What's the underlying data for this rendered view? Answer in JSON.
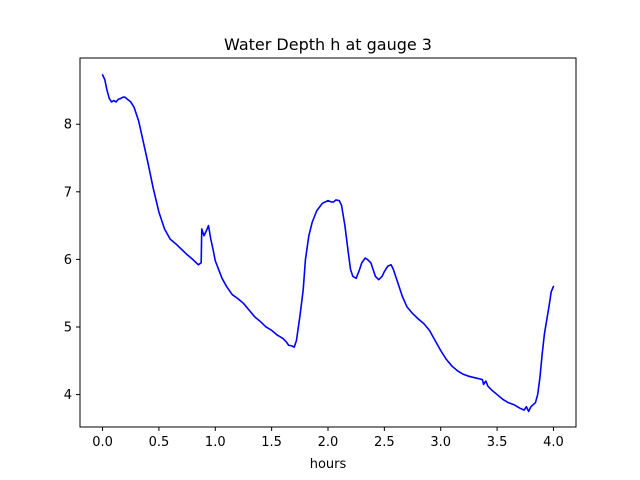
{
  "chart_data": {
    "type": "line",
    "title": "Water Depth h at gauge 3",
    "xlabel": "hours",
    "ylabel": "",
    "xlim": [
      -0.2,
      4.2
    ],
    "ylim": [
      3.52,
      8.98
    ],
    "xticks": [
      0.0,
      0.5,
      1.0,
      1.5,
      2.0,
      2.5,
      3.0,
      3.5,
      4.0
    ],
    "xtick_labels": [
      "0.0",
      "0.5",
      "1.0",
      "1.5",
      "2.0",
      "2.5",
      "3.0",
      "3.5",
      "4.0"
    ],
    "yticks": [
      4,
      5,
      6,
      7,
      8
    ],
    "ytick_labels": [
      "4",
      "5",
      "6",
      "7",
      "8"
    ],
    "grid": false,
    "series": [
      {
        "color": "#0000ff",
        "x": [
          0.0,
          0.02,
          0.04,
          0.06,
          0.08,
          0.1,
          0.12,
          0.14,
          0.16,
          0.18,
          0.2,
          0.22,
          0.25,
          0.28,
          0.32,
          0.36,
          0.4,
          0.45,
          0.5,
          0.55,
          0.6,
          0.65,
          0.7,
          0.75,
          0.8,
          0.85,
          0.875,
          0.88,
          0.9,
          0.92,
          0.94,
          0.96,
          0.98,
          1.0,
          1.03,
          1.06,
          1.1,
          1.15,
          1.2,
          1.25,
          1.3,
          1.35,
          1.4,
          1.45,
          1.5,
          1.55,
          1.6,
          1.63,
          1.65,
          1.68,
          1.7,
          1.72,
          1.75,
          1.78,
          1.8,
          1.83,
          1.86,
          1.9,
          1.95,
          2.0,
          2.03,
          2.05,
          2.07,
          2.1,
          2.12,
          2.15,
          2.18,
          2.2,
          2.22,
          2.25,
          2.28,
          2.3,
          2.33,
          2.35,
          2.38,
          2.4,
          2.42,
          2.45,
          2.48,
          2.5,
          2.53,
          2.56,
          2.58,
          2.6,
          2.63,
          2.66,
          2.7,
          2.75,
          2.8,
          2.85,
          2.9,
          2.95,
          3.0,
          3.05,
          3.1,
          3.15,
          3.2,
          3.25,
          3.3,
          3.35,
          3.37,
          3.38,
          3.4,
          3.42,
          3.45,
          3.5,
          3.55,
          3.6,
          3.65,
          3.7,
          3.74,
          3.76,
          3.78,
          3.8,
          3.82,
          3.84,
          3.86,
          3.88,
          3.9,
          3.92,
          3.94,
          3.96,
          3.98,
          4.0
        ],
        "y": [
          8.73,
          8.66,
          8.5,
          8.38,
          8.33,
          8.35,
          8.33,
          8.37,
          8.38,
          8.4,
          8.4,
          8.37,
          8.33,
          8.25,
          8.05,
          7.75,
          7.45,
          7.05,
          6.7,
          6.45,
          6.3,
          6.23,
          6.15,
          6.07,
          6.0,
          5.92,
          5.95,
          6.45,
          6.35,
          6.42,
          6.5,
          6.3,
          6.15,
          5.98,
          5.85,
          5.72,
          5.6,
          5.48,
          5.42,
          5.35,
          5.25,
          5.15,
          5.08,
          5.0,
          4.95,
          4.88,
          4.83,
          4.78,
          4.73,
          4.72,
          4.7,
          4.8,
          5.15,
          5.55,
          6.0,
          6.35,
          6.55,
          6.72,
          6.83,
          6.87,
          6.85,
          6.85,
          6.88,
          6.87,
          6.8,
          6.5,
          6.1,
          5.85,
          5.75,
          5.72,
          5.85,
          5.95,
          6.02,
          6.0,
          5.95,
          5.85,
          5.75,
          5.7,
          5.75,
          5.82,
          5.9,
          5.92,
          5.85,
          5.75,
          5.6,
          5.45,
          5.3,
          5.2,
          5.12,
          5.05,
          4.95,
          4.8,
          4.65,
          4.52,
          4.42,
          4.35,
          4.3,
          4.27,
          4.25,
          4.23,
          4.22,
          4.15,
          4.2,
          4.12,
          4.07,
          4.0,
          3.93,
          3.88,
          3.85,
          3.8,
          3.77,
          3.82,
          3.75,
          3.82,
          3.85,
          3.88,
          4.0,
          4.25,
          4.6,
          4.9,
          5.1,
          5.3,
          5.52,
          5.6
        ]
      }
    ]
  }
}
